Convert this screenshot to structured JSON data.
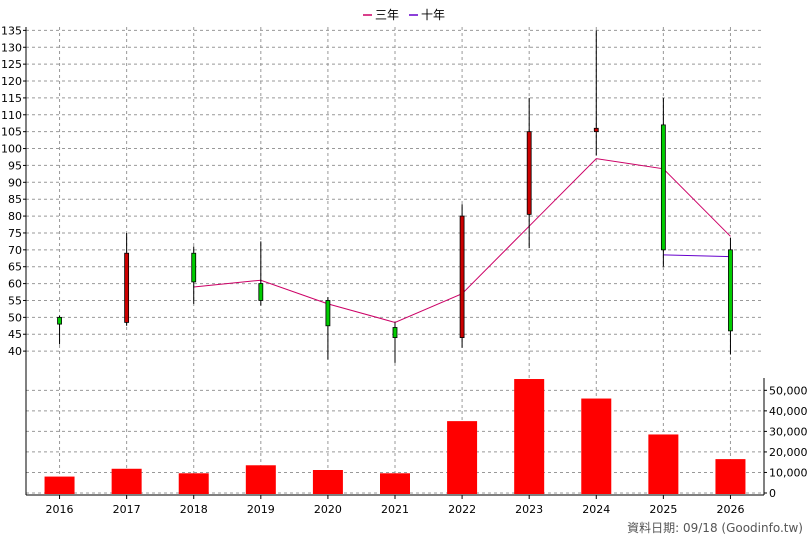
{
  "chart_data": {
    "type": "candlestick+bar",
    "legend": [
      {
        "name": "三年",
        "color": "#cc0066"
      },
      {
        "name": "十年",
        "color": "#6600cc"
      }
    ],
    "categories": [
      "2016",
      "2017",
      "2018",
      "2019",
      "2020",
      "2021",
      "2022",
      "2023",
      "2024",
      "2025",
      "2026"
    ],
    "price_axis": {
      "ylim": [
        35,
        136
      ],
      "ticks": [
        40,
        45,
        50,
        55,
        60,
        65,
        70,
        75,
        80,
        85,
        90,
        95,
        100,
        105,
        110,
        115,
        120,
        125,
        130,
        135
      ]
    },
    "volume_axis": {
      "ylim": [
        0,
        56000
      ],
      "ticks": [
        0,
        10000,
        20000,
        30000,
        40000,
        50000
      ],
      "tick_labels": [
        "0",
        "10,000",
        "20,000",
        "30,000",
        "40,000",
        "50,000"
      ]
    },
    "candles": [
      {
        "year": "2016",
        "open": 50,
        "close": 48,
        "high": 50.5,
        "low": 42
      },
      {
        "year": "2017",
        "open": 48.5,
        "close": 69,
        "high": 75,
        "low": 47.5
      },
      {
        "year": "2018",
        "open": 69,
        "close": 60.5,
        "high": 71,
        "low": 54
      },
      {
        "year": "2019",
        "open": 60,
        "close": 55,
        "high": 72.5,
        "low": 53.5
      },
      {
        "year": "2020",
        "open": 55,
        "close": 47.5,
        "high": 56,
        "low": 37.5
      },
      {
        "year": "2021",
        "open": 47,
        "close": 44,
        "high": 48.5,
        "low": 36.5
      },
      {
        "year": "2022",
        "open": 44,
        "close": 80,
        "high": 83.5,
        "low": 41
      },
      {
        "year": "2023",
        "open": 80.5,
        "close": 105,
        "high": 115,
        "low": 70.5
      },
      {
        "year": "2024",
        "open": 105,
        "close": 106,
        "high": 135,
        "low": 98
      },
      {
        "year": "2025",
        "open": 107,
        "close": 70,
        "high": 115,
        "low": 65
      },
      {
        "year": "2026",
        "open": 70,
        "close": 46,
        "high": 73.5,
        "low": 39
      }
    ],
    "volume": [
      {
        "year": "2016",
        "value": 8000
      },
      {
        "year": "2017",
        "value": 11800
      },
      {
        "year": "2018",
        "value": 9600
      },
      {
        "year": "2019",
        "value": 13500
      },
      {
        "year": "2020",
        "value": 11200
      },
      {
        "year": "2021",
        "value": 9600
      },
      {
        "year": "2022",
        "value": 35000
      },
      {
        "year": "2023",
        "value": 55500
      },
      {
        "year": "2024",
        "value": 46000
      },
      {
        "year": "2025",
        "value": 28500
      },
      {
        "year": "2026",
        "value": 16500
      }
    ],
    "ma_3yr": [
      {
        "year": "2018",
        "value": 59
      },
      {
        "year": "2019",
        "value": 61
      },
      {
        "year": "2020",
        "value": 54
      },
      {
        "year": "2021",
        "value": 48.5
      },
      {
        "year": "2022",
        "value": 57
      },
      {
        "year": "2023",
        "value": 77
      },
      {
        "year": "2024",
        "value": 97
      },
      {
        "year": "2025",
        "value": 94
      },
      {
        "year": "2026",
        "value": 74
      }
    ],
    "ma_10yr": [
      {
        "year": "2025",
        "value": 68.5
      },
      {
        "year": "2026",
        "value": 68
      }
    ],
    "colors": {
      "up": "#cc0000",
      "down": "#00cc00",
      "volume": "#ff0000",
      "grid": "#999999"
    }
  },
  "footer": "資料日期: 09/18  (Goodinfo.tw)"
}
